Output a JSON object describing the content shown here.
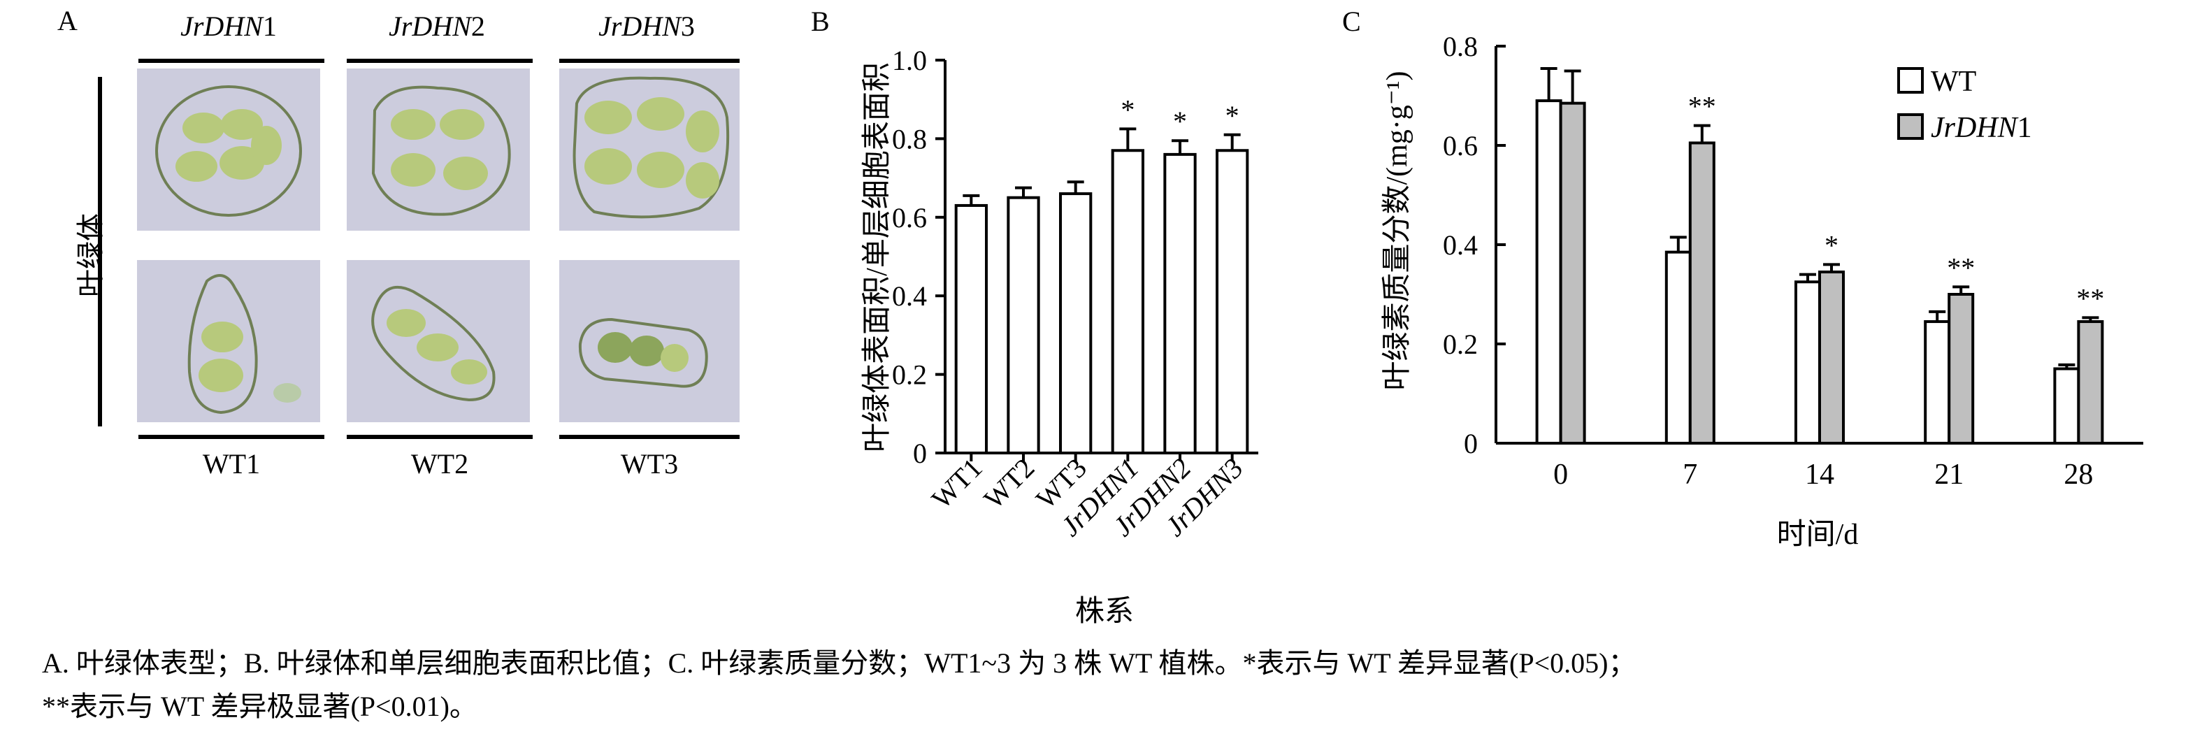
{
  "panel_a": {
    "letter": "A",
    "row_label": "叶绿体",
    "top_labels": [
      {
        "gene": "JrDHN",
        "num": "1"
      },
      {
        "gene": "JrDHN",
        "num": "2"
      },
      {
        "gene": "JrDHN",
        "num": "3"
      }
    ],
    "bottom_labels": [
      "WT1",
      "WT2",
      "WT3"
    ]
  },
  "chart_data": [
    {
      "panel": "B",
      "type": "bar",
      "categories": [
        "WT1",
        "WT2",
        "WT3",
        "JrDHN1",
        "JrDHN2",
        "JrDHN3"
      ],
      "values": [
        0.63,
        0.65,
        0.66,
        0.77,
        0.76,
        0.77
      ],
      "errors": [
        0.025,
        0.025,
        0.03,
        0.055,
        0.035,
        0.04
      ],
      "significance": [
        "",
        "",
        "",
        "*",
        "*",
        "*"
      ],
      "ylabel": "叶绿体表面积/单层细胞表面积",
      "xlabel": "株系",
      "ylim": [
        0,
        1.0
      ],
      "yticks": [
        "0",
        "0.2",
        "0.4",
        "0.6",
        "0.8",
        "1.0"
      ]
    },
    {
      "panel": "C",
      "type": "bar",
      "categories": [
        "0",
        "7",
        "14",
        "21",
        "28"
      ],
      "series": [
        {
          "name": "WT",
          "values": [
            0.69,
            0.385,
            0.325,
            0.245,
            0.15
          ],
          "errors": [
            0.065,
            0.03,
            0.015,
            0.02,
            0.008
          ],
          "color": "#ffffff"
        },
        {
          "name": "JrDHN1",
          "values": [
            0.685,
            0.605,
            0.345,
            0.3,
            0.245
          ],
          "errors": [
            0.065,
            0.035,
            0.015,
            0.015,
            0.008
          ],
          "color": "#bfbfbf"
        }
      ],
      "significance": [
        "",
        "**",
        "*",
        "**",
        "**"
      ],
      "ylabel": "叶绿素质量分数/(mg·g⁻¹)",
      "xlabel": "时间/d",
      "ylim": [
        0,
        0.8
      ],
      "yticks": [
        "0",
        "0.2",
        "0.4",
        "0.6",
        "0.8"
      ],
      "legend_position": "top-right"
    }
  ],
  "panel_b_letter": "B",
  "panel_c_letter": "C",
  "caption": {
    "line1": "A. 叶绿体表型；B. 叶绿体和单层细胞表面积比值；C. 叶绿素质量分数；WT1~3 为 3 株 WT 植株。*表示与 WT 差异显著(P<0.05)；",
    "line2": "**表示与 WT 差异极显著(P<0.01)。"
  }
}
